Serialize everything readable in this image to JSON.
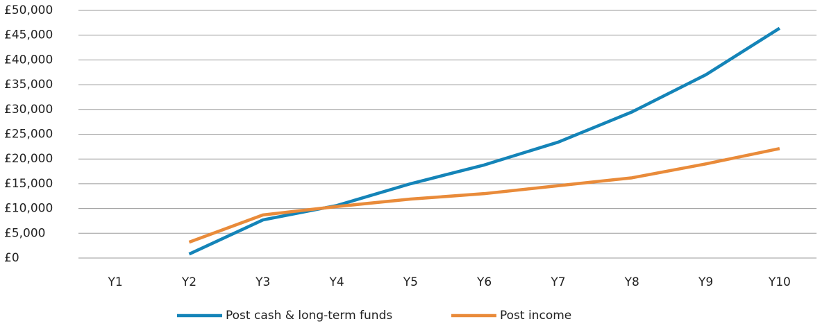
{
  "chart_data": {
    "type": "line",
    "categories": [
      "Y1",
      "Y2",
      "Y3",
      "Y4",
      "Y5",
      "Y6",
      "Y7",
      "Y8",
      "Y9",
      "Y10"
    ],
    "series": [
      {
        "name": "Post cash & long-term funds",
        "color": "#1484b8",
        "values": [
          null,
          800,
          7700,
          10600,
          15000,
          18800,
          23400,
          29500,
          37000,
          46400
        ]
      },
      {
        "name": "Post income",
        "color": "#e98b3a",
        "values": [
          null,
          3200,
          8700,
          10400,
          11900,
          13000,
          14600,
          16200,
          19000,
          22100
        ]
      }
    ],
    "ylim": [
      0,
      50000
    ],
    "yticks": [
      {
        "value": 0,
        "label": "£0"
      },
      {
        "value": 5000,
        "label": "£5,000"
      },
      {
        "value": 10000,
        "label": "£10,000"
      },
      {
        "value": 15000,
        "label": "£15,000"
      },
      {
        "value": 20000,
        "label": "£20,000"
      },
      {
        "value": 25000,
        "label": "£25,000"
      },
      {
        "value": 30000,
        "label": "£30,000"
      },
      {
        "value": 35000,
        "label": "£35,000"
      },
      {
        "value": 40000,
        "label": "£40,000"
      },
      {
        "value": 45000,
        "label": "£45,000"
      },
      {
        "value": 50000,
        "label": "£50,000"
      }
    ],
    "grid": true,
    "legend": "bottom"
  }
}
